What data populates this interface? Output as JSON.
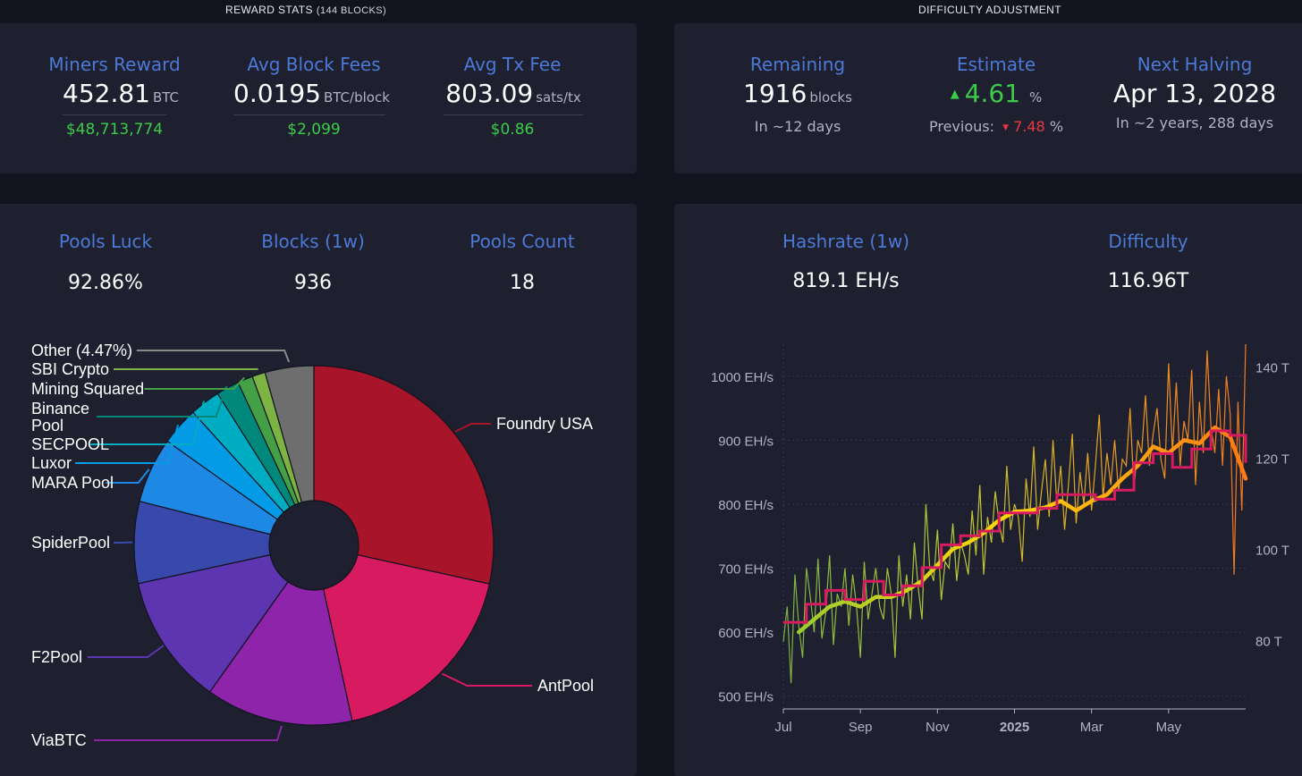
{
  "reward_stats": {
    "label": "REWARD STATS",
    "sub": "(144 BLOCKS)",
    "miners_reward": {
      "title": "Miners Reward",
      "value": "452.81",
      "unit": "BTC",
      "usd": "$48,713,774"
    },
    "avg_block_fees": {
      "title": "Avg Block Fees",
      "value": "0.0195",
      "unit": "BTC/block",
      "usd": "$2,099"
    },
    "avg_tx_fee": {
      "title": "Avg Tx Fee",
      "value": "803.09",
      "unit": "sats/tx",
      "usd": "$0.86"
    }
  },
  "difficulty_adjustment": {
    "label": "DIFFICULTY ADJUSTMENT",
    "remaining": {
      "title": "Remaining",
      "value": "1916",
      "unit": "blocks",
      "sub": "In ~12 days"
    },
    "estimate": {
      "title": "Estimate",
      "arrow_up": "▲",
      "value": "4.61",
      "unit": "%",
      "previous_label": "Previous:",
      "arrow_down": "▼",
      "previous_value": "7.48",
      "previous_unit": "%"
    },
    "next_halving": {
      "title": "Next Halving",
      "value": "Apr 13, 2028",
      "sub": "In ~2 years, 288 days"
    }
  },
  "pools": {
    "luck": {
      "title": "Pools Luck",
      "value": "92.86%"
    },
    "blocks": {
      "title": "Blocks (1w)",
      "value": "936"
    },
    "count": {
      "title": "Pools Count",
      "value": "18"
    }
  },
  "hashrate": {
    "hashrate": {
      "title": "Hashrate (1w)",
      "value": "819.1 EH/s"
    },
    "difficulty": {
      "title": "Difficulty",
      "value": "116.96T"
    }
  },
  "chart_data": [
    {
      "type": "pie",
      "title": "",
      "slices": [
        {
          "label": "Foundry USA",
          "value": 29.0,
          "color": "#a8142a"
        },
        {
          "label": "AntPool",
          "value": 18.5,
          "color": "#d81b60"
        },
        {
          "label": "ViaBTC",
          "value": 13.5,
          "color": "#8e24aa"
        },
        {
          "label": "F2Pool",
          "value": 12.0,
          "color": "#5e35b1"
        },
        {
          "label": "SpiderPool",
          "value": 7.5,
          "color": "#3949ab"
        },
        {
          "label": "MARA Pool",
          "value": 6.0,
          "color": "#1e88e5"
        },
        {
          "label": "Luxor",
          "value": 3.5,
          "color": "#039be5"
        },
        {
          "label": "SECPOOL",
          "value": 2.8,
          "color": "#00acc1"
        },
        {
          "label": "Binance Pool",
          "value": 2.1,
          "color": "#00897b"
        },
        {
          "label": "Mining Squared",
          "value": 1.4,
          "color": "#43a047"
        },
        {
          "label": "SBI Crypto",
          "value": 1.2,
          "color": "#7cb342"
        },
        {
          "label": "Other (4.47%)",
          "value": 4.47,
          "color": "#6e6e6e"
        }
      ]
    },
    {
      "type": "line",
      "title": "",
      "x_ticks": [
        "Jul",
        "Sep",
        "Nov",
        "2025",
        "Mar",
        "May"
      ],
      "y_left_ticks": [
        "500 EH/s",
        "600 EH/s",
        "700 EH/s",
        "800 EH/s",
        "900 EH/s",
        "1000 EH/s"
      ],
      "y_left_range": [
        480,
        1050
      ],
      "y_right_ticks": [
        "80 T",
        "100 T",
        "120 T",
        "140 T"
      ],
      "y_right_range": [
        65,
        145
      ],
      "grid": true,
      "series": [
        {
          "name": "",
          "axis": "left",
          "color": "#e79a1f",
          "style": "daily",
          "x": [
            0.0,
            0.1,
            0.2,
            0.3,
            0.4,
            0.5,
            0.6,
            0.7,
            0.8,
            0.9,
            1.0,
            1.1,
            1.2,
            1.3,
            1.4,
            1.5,
            1.6,
            1.7,
            1.8,
            1.9,
            2.0,
            2.1,
            2.2,
            2.3,
            2.4,
            2.5,
            2.6,
            2.7,
            2.8,
            2.9,
            3.0,
            3.1,
            3.2,
            3.3,
            3.4,
            3.5,
            3.6,
            3.7,
            3.8,
            3.9,
            4.0,
            4.1,
            4.2,
            4.3,
            4.4,
            4.5,
            4.6,
            4.7,
            4.8,
            4.9,
            5.0,
            5.1,
            5.2,
            5.3,
            5.4,
            5.5,
            5.6,
            5.7,
            5.8,
            5.9,
            6.0,
            6.1,
            6.2,
            6.3,
            6.4,
            6.5,
            6.6,
            6.7,
            6.8,
            6.9,
            7.0,
            7.1,
            7.2,
            7.3,
            7.4,
            7.5,
            7.6,
            7.7,
            7.8,
            7.9,
            8.0,
            8.1,
            8.2,
            8.3,
            8.4,
            8.5,
            8.6,
            8.7,
            8.8,
            8.9,
            9.0,
            9.1,
            9.2,
            9.3,
            9.4,
            9.5,
            9.6,
            9.7,
            9.8,
            9.9,
            10.0,
            10.1,
            10.2,
            10.3,
            10.4,
            10.5,
            10.6,
            10.7,
            10.8,
            10.9,
            11.0,
            11.1,
            11.2,
            11.3,
            11.4,
            11.5,
            11.6,
            11.7,
            11.8,
            11.9,
            12.0
          ],
          "y": [
            585,
            640,
            520,
            690,
            610,
            560,
            700,
            655,
            600,
            715,
            590,
            630,
            720,
            580,
            660,
            640,
            700,
            610,
            690,
            640,
            560,
            710,
            620,
            660,
            700,
            640,
            620,
            700,
            660,
            560,
            720,
            640,
            690,
            620,
            740,
            670,
            620,
            800,
            700,
            680,
            760,
            650,
            710,
            700,
            770,
            680,
            740,
            720,
            690,
            790,
            720,
            830,
            690,
            780,
            740,
            820,
            770,
            740,
            860,
            760,
            800,
            780,
            710,
            840,
            780,
            890,
            760,
            820,
            870,
            780,
            900,
            800,
            860,
            760,
            830,
            910,
            770,
            850,
            800,
            880,
            790,
            860,
            940,
            810,
            880,
            830,
            900,
            820,
            870,
            860,
            950,
            820,
            900,
            880,
            970,
            860,
            910,
            950,
            870,
            840,
            1020,
            880,
            990,
            860,
            930,
            900,
            1010,
            830,
            960,
            880,
            1040,
            920,
            880,
            980,
            860,
            1000,
            940,
            690,
            960,
            790,
            1050
          ]
        },
        {
          "name": "",
          "axis": "left",
          "color": "#f5b80c",
          "style": "smoothed",
          "x": [
            0.4,
            0.8,
            1.2,
            1.6,
            2.0,
            2.4,
            2.8,
            3.2,
            3.6,
            4.0,
            4.4,
            4.8,
            5.2,
            5.6,
            6.0,
            6.4,
            6.8,
            7.2,
            7.6,
            8.0,
            8.4,
            8.8,
            9.2,
            9.6,
            10.0,
            10.4,
            10.8,
            11.2,
            11.6,
            12.0
          ],
          "y": [
            600,
            620,
            640,
            648,
            640,
            655,
            655,
            665,
            680,
            705,
            730,
            740,
            755,
            775,
            788,
            790,
            795,
            805,
            790,
            805,
            815,
            840,
            860,
            890,
            880,
            900,
            895,
            920,
            905,
            840
          ]
        },
        {
          "name": "",
          "axis": "right",
          "color": "#d81b60",
          "style": "step",
          "x": [
            0.0,
            0.6,
            1.1,
            1.6,
            2.1,
            2.6,
            3.1,
            3.6,
            4.1,
            4.6,
            5.1,
            5.6,
            6.1,
            6.6,
            7.1,
            7.6,
            8.1,
            8.6,
            9.1,
            9.6,
            10.1,
            10.6,
            11.1,
            11.6,
            12.0
          ],
          "y": [
            84,
            88,
            91,
            89,
            93,
            90,
            92,
            96,
            101,
            103,
            104,
            108,
            108,
            109,
            112,
            112,
            111,
            113,
            119,
            121,
            118,
            122,
            126,
            125,
            119
          ]
        }
      ]
    }
  ]
}
